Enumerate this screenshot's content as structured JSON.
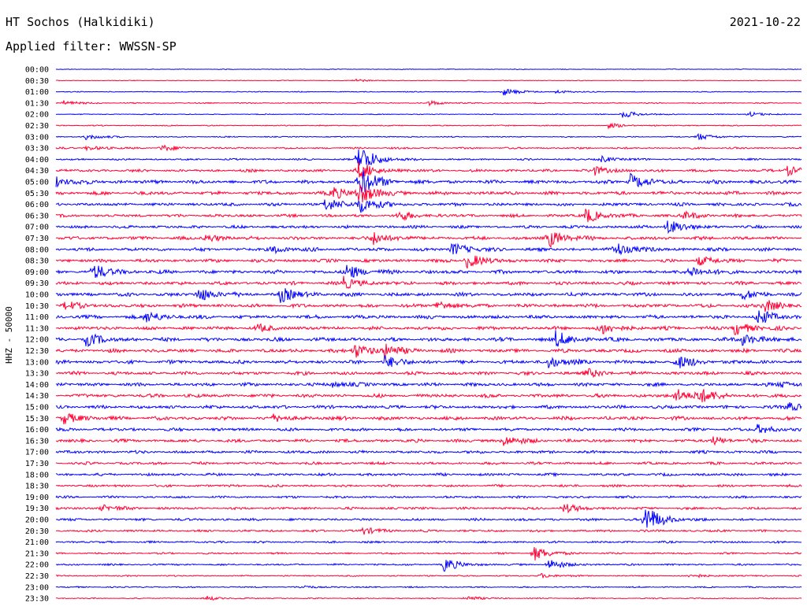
{
  "header": {
    "station": "HT Sochos (Halkidiki)",
    "date": "2021-10-22",
    "filter": "Applied filter: WWSSN-SP"
  },
  "chart_data": {
    "type": "line",
    "title": "HT Sochos (Halkidiki)",
    "ylabel": "HHZ - 50000",
    "xlabel": "",
    "colors": [
      "#0000ff",
      "#ff0033"
    ],
    "row_labels": [
      "00:00",
      "00:30",
      "01:00",
      "01:30",
      "02:00",
      "02:30",
      "03:00",
      "03:30",
      "04:00",
      "04:30",
      "05:00",
      "05:30",
      "06:00",
      "06:30",
      "07:00",
      "07:30",
      "08:00",
      "08:30",
      "09:00",
      "09:30",
      "10:00",
      "10:30",
      "11:00",
      "11:30",
      "12:00",
      "12:30",
      "13:00",
      "13:30",
      "14:00",
      "14:30",
      "15:00",
      "15:30",
      "16:00",
      "16:30",
      "17:00",
      "17:30",
      "18:00",
      "18:30",
      "19:00",
      "19:30",
      "20:00",
      "20:30",
      "21:00",
      "21:30",
      "22:00",
      "22:30",
      "23:00",
      "23:30"
    ],
    "noise_levels": [
      0.3,
      0.3,
      0.4,
      0.5,
      0.4,
      0.5,
      0.5,
      0.8,
      0.8,
      1.2,
      1.6,
      1.6,
      1.4,
      1.3,
      1.3,
      1.5,
      1.5,
      1.5,
      1.6,
      1.5,
      1.6,
      1.6,
      1.6,
      1.6,
      1.7,
      1.6,
      1.6,
      1.5,
      1.5,
      1.6,
      1.5,
      1.6,
      1.4,
      1.4,
      1.3,
      1.2,
      1.2,
      1.1,
      1.0,
      1.1,
      1.1,
      1.0,
      0.9,
      0.8,
      0.8,
      0.6,
      0.6,
      0.5
    ],
    "events": [
      {
        "row": 1,
        "t": 0.4,
        "amp": 2
      },
      {
        "row": 2,
        "t": 0.6,
        "amp": 5
      },
      {
        "row": 2,
        "t": 0.67,
        "amp": 2
      },
      {
        "row": 3,
        "t": 0.01,
        "amp": 3
      },
      {
        "row": 3,
        "t": 0.5,
        "amp": 3
      },
      {
        "row": 4,
        "t": 0.76,
        "amp": 5
      },
      {
        "row": 4,
        "t": 0.93,
        "amp": 3
      },
      {
        "row": 5,
        "t": 0.74,
        "amp": 3
      },
      {
        "row": 6,
        "t": 0.04,
        "amp": 4
      },
      {
        "row": 6,
        "t": 0.86,
        "amp": 5
      },
      {
        "row": 7,
        "t": 0.04,
        "amp": 3
      },
      {
        "row": 7,
        "t": 0.14,
        "amp": 4
      },
      {
        "row": 8,
        "t": 0.405,
        "amp": 22
      },
      {
        "row": 8,
        "t": 0.73,
        "amp": 4
      },
      {
        "row": 9,
        "t": 0.405,
        "amp": 12
      },
      {
        "row": 9,
        "t": 0.72,
        "amp": 6
      },
      {
        "row": 9,
        "t": 0.98,
        "amp": 7
      },
      {
        "row": 10,
        "t": 0.405,
        "amp": 22
      },
      {
        "row": 10,
        "t": 0.77,
        "amp": 10
      },
      {
        "row": 10,
        "t": 0.0,
        "amp": 6
      },
      {
        "row": 11,
        "t": 0.37,
        "amp": 9
      },
      {
        "row": 11,
        "t": 0.405,
        "amp": 14
      },
      {
        "row": 12,
        "t": 0.36,
        "amp": 9
      },
      {
        "row": 12,
        "t": 0.405,
        "amp": 12
      },
      {
        "row": 13,
        "t": 0.46,
        "amp": 6
      },
      {
        "row": 13,
        "t": 0.71,
        "amp": 10
      },
      {
        "row": 13,
        "t": 0.84,
        "amp": 5
      },
      {
        "row": 14,
        "t": 0.82,
        "amp": 10
      },
      {
        "row": 15,
        "t": 0.2,
        "amp": 5
      },
      {
        "row": 15,
        "t": 0.425,
        "amp": 9
      },
      {
        "row": 15,
        "t": 0.66,
        "amp": 12
      },
      {
        "row": 16,
        "t": 0.29,
        "amp": 5
      },
      {
        "row": 16,
        "t": 0.53,
        "amp": 9
      },
      {
        "row": 16,
        "t": 0.75,
        "amp": 10
      },
      {
        "row": 17,
        "t": 0.55,
        "amp": 10
      },
      {
        "row": 17,
        "t": 0.86,
        "amp": 6
      },
      {
        "row": 18,
        "t": 0.05,
        "amp": 10
      },
      {
        "row": 18,
        "t": 0.39,
        "amp": 10
      },
      {
        "row": 18,
        "t": 0.85,
        "amp": 8
      },
      {
        "row": 19,
        "t": 0.385,
        "amp": 8
      },
      {
        "row": 20,
        "t": 0.19,
        "amp": 10
      },
      {
        "row": 20,
        "t": 0.3,
        "amp": 10
      },
      {
        "row": 20,
        "t": 0.92,
        "amp": 6
      },
      {
        "row": 21,
        "t": 0.01,
        "amp": 5
      },
      {
        "row": 21,
        "t": 0.51,
        "amp": 6
      },
      {
        "row": 21,
        "t": 0.95,
        "amp": 8
      },
      {
        "row": 22,
        "t": 0.12,
        "amp": 8
      },
      {
        "row": 22,
        "t": 0.94,
        "amp": 10
      },
      {
        "row": 23,
        "t": 0.27,
        "amp": 4
      },
      {
        "row": 23,
        "t": 0.73,
        "amp": 8
      },
      {
        "row": 23,
        "t": 0.91,
        "amp": 9
      },
      {
        "row": 24,
        "t": 0.04,
        "amp": 8
      },
      {
        "row": 24,
        "t": 0.67,
        "amp": 11
      },
      {
        "row": 24,
        "t": 0.92,
        "amp": 8
      },
      {
        "row": 25,
        "t": 0.4,
        "amp": 10
      },
      {
        "row": 25,
        "t": 0.44,
        "amp": 8
      },
      {
        "row": 26,
        "t": 0.44,
        "amp": 8
      },
      {
        "row": 26,
        "t": 0.66,
        "amp": 8
      },
      {
        "row": 26,
        "t": 0.83,
        "amp": 10
      },
      {
        "row": 27,
        "t": 0.71,
        "amp": 6
      },
      {
        "row": 28,
        "t": 0.37,
        "amp": 4
      },
      {
        "row": 28,
        "t": 0.97,
        "amp": 5
      },
      {
        "row": 29,
        "t": 0.83,
        "amp": 9
      },
      {
        "row": 29,
        "t": 0.86,
        "amp": 10
      },
      {
        "row": 30,
        "t": 0.98,
        "amp": 6
      },
      {
        "row": 31,
        "t": 0.01,
        "amp": 8
      },
      {
        "row": 31,
        "t": 0.29,
        "amp": 4
      },
      {
        "row": 32,
        "t": 0.94,
        "amp": 6
      },
      {
        "row": 33,
        "t": 0.6,
        "amp": 7
      },
      {
        "row": 33,
        "t": 0.88,
        "amp": 5
      },
      {
        "row": 39,
        "t": 0.06,
        "amp": 5
      },
      {
        "row": 39,
        "t": 0.68,
        "amp": 6
      },
      {
        "row": 40,
        "t": 0.79,
        "amp": 20
      },
      {
        "row": 41,
        "t": 0.41,
        "amp": 5
      },
      {
        "row": 43,
        "t": 0.64,
        "amp": 10
      },
      {
        "row": 44,
        "t": 0.52,
        "amp": 9
      },
      {
        "row": 44,
        "t": 0.66,
        "amp": 7
      },
      {
        "row": 45,
        "t": 0.65,
        "amp": 3
      },
      {
        "row": 45,
        "t": 0.85,
        "amp": 3
      },
      {
        "row": 46,
        "t": 0.33,
        "amp": 2
      },
      {
        "row": 47,
        "t": 0.2,
        "amp": 3
      },
      {
        "row": 47,
        "t": 0.55,
        "amp": 3
      }
    ]
  }
}
